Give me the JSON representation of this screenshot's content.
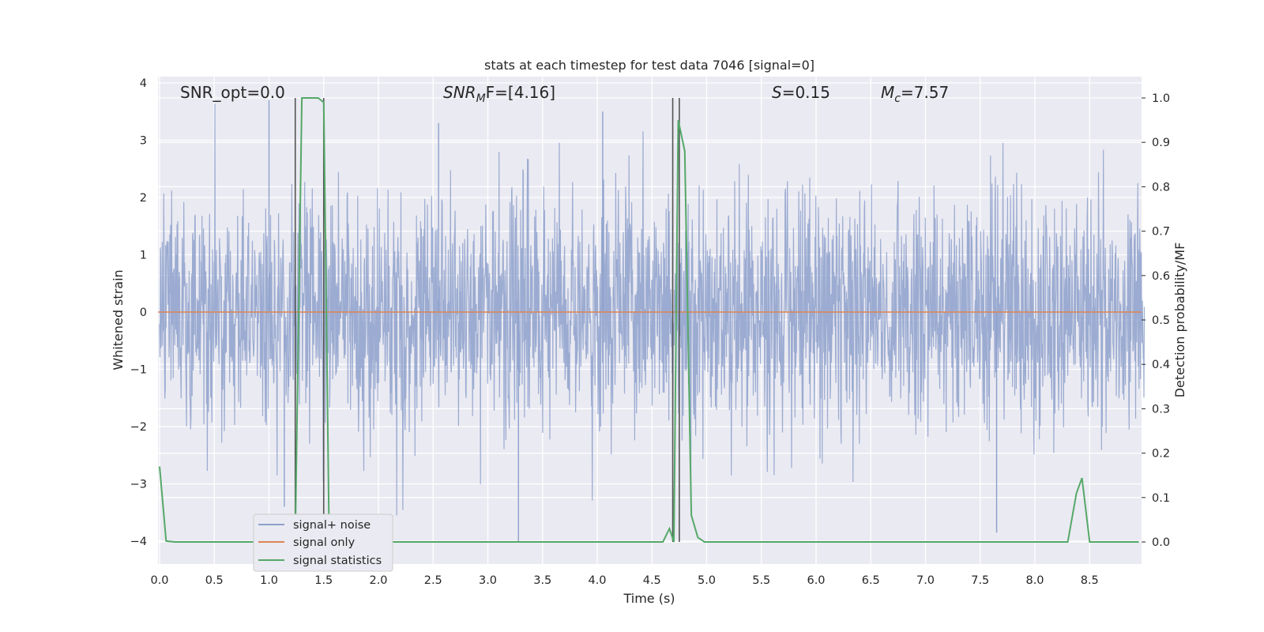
{
  "chart_data": {
    "type": "line",
    "title": "stats at each timestep for test data 7046 [signal=0]",
    "xlabel": "Time (s)",
    "ylabel": "Whitened strain",
    "y2label": "Detection probability/MF",
    "xlim": [
      0.0,
      9.0
    ],
    "ylim": [
      -4.4,
      4.1
    ],
    "y2lim": [
      -0.05,
      1.035
    ],
    "xticks": [
      "0.0",
      "0.5",
      "1.0",
      "1.5",
      "2.0",
      "2.5",
      "3.0",
      "3.5",
      "4.0",
      "4.5",
      "5.0",
      "5.5",
      "6.0",
      "6.5",
      "7.0",
      "7.5",
      "8.0",
      "8.5"
    ],
    "yticks": [
      "4",
      "3",
      "2",
      "1",
      "0",
      "−1",
      "−2",
      "−3",
      "−4"
    ],
    "y2ticks": [
      "1.0",
      "0.9",
      "0.8",
      "0.7",
      "0.6",
      "0.5",
      "0.4",
      "0.3",
      "0.2",
      "0.1",
      "0.0"
    ],
    "grid": true,
    "legend_position": "lower-left",
    "annotations": {
      "snr_opt": "SNR_opt=0.0",
      "snr_mf_base": "SNR",
      "snr_mf_sub": "M",
      "snr_mf_after": "F=[4.16]",
      "s_base": "S",
      "s_value": "=0.15",
      "mc_base": "M",
      "mc_sub": "c",
      "mc_value": "=7.57"
    },
    "vlines_x": [
      1.24,
      1.5,
      4.69,
      4.75
    ],
    "series": [
      {
        "name": "signal+ noise",
        "color": "#8da0cb",
        "axis": "left",
        "description_range": [
          -4.0,
          3.7
        ],
        "extremes": [
          {
            "x": 1.0,
            "y": 3.7
          },
          {
            "x": 2.55,
            "y": 3.3
          },
          {
            "x": 3.28,
            "y": -4.0
          },
          {
            "x": 4.05,
            "y": 3.5
          },
          {
            "x": 7.65,
            "y": -3.85
          },
          {
            "x": 1.14,
            "y": -3.4
          }
        ]
      },
      {
        "name": "signal only",
        "color": "#dd8452",
        "axis": "left",
        "x": [
          0.0,
          9.0
        ],
        "y": [
          0.0,
          0.0
        ]
      },
      {
        "name": "signal statistics",
        "color": "#55a868",
        "axis": "right",
        "x": [
          0.0,
          0.06,
          0.14,
          1.2,
          1.24,
          1.3,
          1.45,
          1.5,
          1.55,
          1.6,
          4.6,
          4.66,
          4.7,
          4.74,
          4.8,
          4.86,
          4.92,
          4.98,
          5.05,
          8.3,
          8.38,
          8.43,
          8.5,
          8.95
        ],
        "y": [
          0.17,
          0.002,
          0.0,
          0.0,
          0.0,
          1.0,
          1.0,
          0.99,
          0.0,
          0.0,
          0.0,
          0.03,
          0.0,
          0.95,
          0.88,
          0.06,
          0.01,
          0.0,
          0.0,
          0.0,
          0.11,
          0.144,
          0.0,
          0.0
        ]
      }
    ]
  }
}
